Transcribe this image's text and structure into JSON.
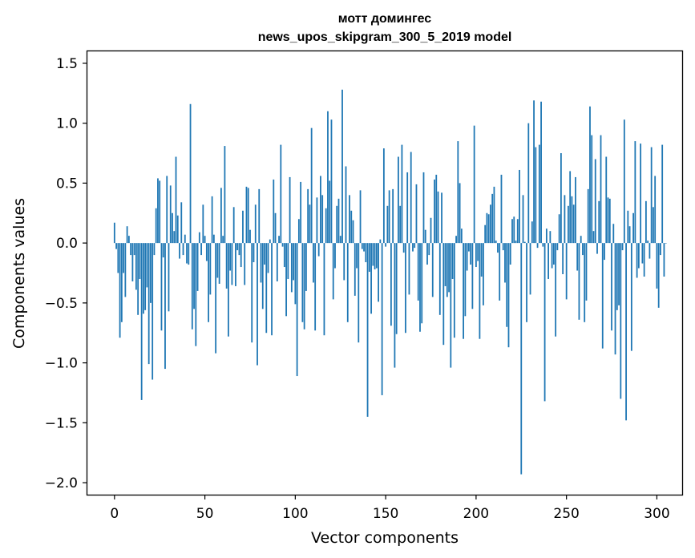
{
  "chart_data": {
    "type": "bar",
    "title_line1": "мотт домингес",
    "title_line2": "news_upos_skipgram_300_5_2019 model",
    "xlabel": "Vector components",
    "ylabel": "Components values",
    "xlim": [
      -15,
      314
    ],
    "ylim": [
      -2.1,
      1.6
    ],
    "xticks": [
      0,
      50,
      100,
      150,
      200,
      250,
      300
    ],
    "yticks": [
      1.5,
      1.0,
      0.5,
      0.0,
      -0.5,
      -1.0,
      -1.5,
      -2.0
    ],
    "xtick_labels": [
      "0",
      "50",
      "100",
      "150",
      "200",
      "250",
      "300"
    ],
    "ytick_labels": [
      "1.5",
      "1.0",
      "0.5",
      "0.0",
      "−0.5",
      "−1.0",
      "−1.5",
      "−2.0"
    ],
    "bar_color": "#1f77b4",
    "values": [
      0.17,
      -0.05,
      -0.25,
      -0.79,
      -0.66,
      -0.25,
      -0.45,
      0.14,
      0.06,
      -0.1,
      -0.32,
      -0.1,
      -0.39,
      -0.6,
      -0.3,
      -1.31,
      -0.59,
      -0.56,
      -0.37,
      -1.01,
      -0.5,
      -1.14,
      -0.1,
      0.29,
      0.54,
      0.52,
      -0.73,
      -0.12,
      -1.05,
      0.56,
      -0.57,
      0.48,
      0.25,
      0.1,
      0.72,
      0.23,
      -0.13,
      0.34,
      -0.1,
      0.07,
      -0.17,
      -0.18,
      1.16,
      -0.72,
      -0.55,
      -0.86,
      -0.4,
      0.09,
      -0.1,
      0.32,
      0.06,
      -0.15,
      -0.66,
      -0.43,
      0.39,
      0.07,
      -0.92,
      -0.29,
      -0.34,
      0.46,
      0.06,
      0.81,
      -0.38,
      -0.78,
      -0.23,
      -0.35,
      0.3,
      -0.36,
      -0.06,
      -0.1,
      -0.2,
      0.27,
      -0.35,
      0.47,
      0.46,
      0.11,
      -0.83,
      -0.16,
      0.32,
      -1.02,
      0.45,
      -0.33,
      -0.55,
      -0.18,
      -0.75,
      -0.25,
      0.03,
      -0.77,
      0.53,
      0.25,
      -0.32,
      0.06,
      0.82,
      -0.03,
      -0.2,
      -0.61,
      -0.3,
      0.55,
      -0.41,
      -0.31,
      -0.51,
      -1.11,
      0.2,
      0.51,
      -0.66,
      -0.72,
      -0.4,
      0.45,
      0.32,
      0.96,
      -0.33,
      -0.73,
      0.38,
      -0.11,
      0.56,
      0.4,
      -0.77,
      0.29,
      1.1,
      0.52,
      1.03,
      -0.47,
      -0.21,
      0.31,
      0.37,
      0.06,
      1.28,
      -0.31,
      0.64,
      -0.66,
      0.4,
      0.27,
      0.19,
      -0.44,
      -0.21,
      -0.83,
      0.44,
      -0.05,
      -0.07,
      -0.16,
      -1.45,
      -0.24,
      -0.59,
      -0.19,
      -0.22,
      -0.21,
      -0.49,
      0.03,
      -1.27,
      0.79,
      -0.03,
      0.31,
      0.44,
      -0.69,
      0.45,
      -1.04,
      -0.76,
      0.72,
      0.31,
      0.82,
      -0.08,
      -0.75,
      0.59,
      -0.43,
      0.76,
      -0.07,
      -0.04,
      0.49,
      -0.48,
      -0.74,
      -0.67,
      0.59,
      0.11,
      -0.18,
      -0.1,
      0.21,
      -0.45,
      0.53,
      0.57,
      0.43,
      -0.6,
      0.42,
      -0.85,
      -0.36,
      -0.45,
      -0.41,
      -1.04,
      -0.3,
      -0.79,
      0.06,
      0.85,
      0.5,
      0.12,
      -0.8,
      -0.61,
      -0.23,
      -0.07,
      -0.18,
      -0.55,
      0.98,
      -0.2,
      -0.15,
      -0.8,
      -0.28,
      -0.52,
      0.15,
      0.25,
      0.24,
      0.32,
      0.41,
      0.47,
      0.02,
      -0.08,
      -0.48,
      0.57,
      -0.06,
      -0.33,
      -0.7,
      -0.87,
      -0.18,
      0.2,
      0.22,
      0.02,
      0.2,
      0.61,
      -1.93,
      0.4,
      0.01,
      -0.66,
      1.0,
      -0.43,
      0.18,
      1.19,
      0.8,
      -0.04,
      0.82,
      1.18,
      -0.03,
      -1.32,
      0.12,
      -0.3,
      0.1,
      -0.21,
      -0.18,
      -0.78,
      -0.06,
      0.24,
      0.75,
      -0.26,
      0.4,
      -0.47,
      0.31,
      0.6,
      0.39,
      0.32,
      0.55,
      -0.23,
      -0.64,
      0.06,
      -0.1,
      -0.66,
      -0.48,
      0.45,
      1.14,
      0.9,
      0.1,
      0.7,
      -0.09,
      0.35,
      0.9,
      -0.88,
      -0.14,
      0.72,
      0.38,
      0.37,
      -0.73,
      0.16,
      -0.93,
      -0.56,
      -0.52,
      -1.3,
      -0.06,
      1.03,
      -1.48,
      0.27,
      0.14,
      -0.9,
      0.25,
      0.85,
      -0.29,
      -0.21,
      0.83,
      -0.17,
      -0.28,
      0.35,
      0.02,
      -0.13,
      0.8,
      0.3,
      0.56,
      -0.38,
      -0.54,
      -0.1,
      0.82,
      -0.28,
      0.0
    ]
  }
}
